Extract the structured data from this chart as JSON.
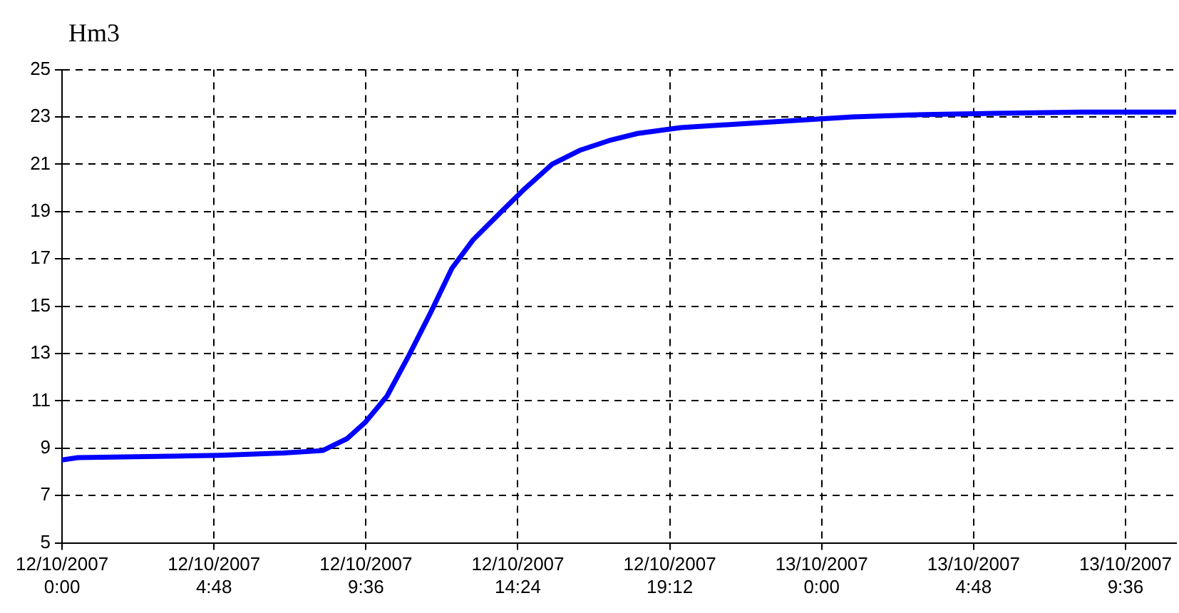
{
  "chart_data": {
    "type": "line",
    "ylabel": "Hm3",
    "x": [
      "2007-10-12T00:00",
      "2007-10-12T00:30",
      "2007-10-12T05:00",
      "2007-10-12T07:00",
      "2007-10-12T08:14",
      "2007-10-12T09:00",
      "2007-10-12T09:35",
      "2007-10-12T10:16",
      "2007-10-12T10:57",
      "2007-10-12T11:38",
      "2007-10-12T12:19",
      "2007-10-12T12:59",
      "2007-10-12T13:53",
      "2007-10-12T14:34",
      "2007-10-12T15:29",
      "2007-10-12T16:23",
      "2007-10-12T17:17",
      "2007-10-12T18:11",
      "2007-10-12T19:33",
      "2007-10-12T21:22",
      "2007-10-12T23:10",
      "2007-10-13T00:59",
      "2007-10-13T03:14",
      "2007-10-13T05:30",
      "2007-10-13T08:12",
      "2007-10-13T11:12"
    ],
    "series": [
      {
        "color": "#0000ff",
        "values": [
          8.5,
          8.6,
          8.7,
          8.8,
          8.9,
          9.4,
          10.1,
          11.2,
          12.9,
          14.7,
          16.6,
          17.8,
          19.0,
          19.9,
          21.0,
          21.6,
          22.0,
          22.3,
          22.55,
          22.7,
          22.85,
          23.0,
          23.1,
          23.15,
          23.2,
          23.2
        ]
      }
    ],
    "xlim": [
      "2007-10-12T00:00",
      "2007-10-13T11:12"
    ],
    "xticks": [
      {
        "value": "2007-10-12T00:00",
        "label": "12/10/2007\n0:00"
      },
      {
        "value": "2007-10-12T04:48",
        "label": "12/10/2007\n4:48"
      },
      {
        "value": "2007-10-12T09:36",
        "label": "12/10/2007\n9:36"
      },
      {
        "value": "2007-10-12T14:24",
        "label": "12/10/2007\n14:24"
      },
      {
        "value": "2007-10-12T19:12",
        "label": "12/10/2007\n19:12"
      },
      {
        "value": "2007-10-13T00:00",
        "label": "13/10/2007\n0:00"
      },
      {
        "value": "2007-10-13T04:48",
        "label": "13/10/2007\n4:48"
      },
      {
        "value": "2007-10-13T09:36",
        "label": "13/10/2007\n9:36"
      }
    ],
    "ylim": [
      5,
      25
    ],
    "yticks": [
      5,
      7,
      9,
      11,
      13,
      15,
      17,
      19,
      21,
      23,
      25
    ],
    "grid": true,
    "legend": false,
    "marker": "none",
    "line_style": "solid"
  }
}
